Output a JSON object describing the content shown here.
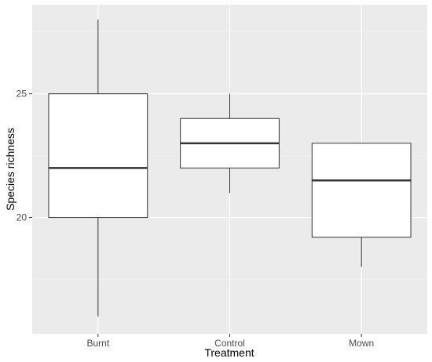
{
  "chart_data": {
    "type": "boxplot",
    "title": "",
    "xlabel": "Treatment",
    "ylabel": "Species richness",
    "categories": [
      "Burnt",
      "Control",
      "Mown"
    ],
    "boxes": [
      {
        "category": "Burnt",
        "whisker_low": 16,
        "q1": 20,
        "median": 22,
        "q3": 25,
        "whisker_high": 28
      },
      {
        "category": "Control",
        "whisker_low": 21,
        "q1": 22,
        "median": 23,
        "q3": 24,
        "whisker_high": 25
      },
      {
        "category": "Mown",
        "whisker_low": 18,
        "q1": 19.2,
        "median": 21.5,
        "q3": 23,
        "whisker_high": 23
      }
    ],
    "ylim": [
      15.3,
      28.6
    ],
    "y_ticks": [
      20,
      25
    ],
    "y_tick_labels": [
      "20",
      "25"
    ],
    "grid": true,
    "colors": {
      "panel_background": "#ebebeb",
      "grid_major": "#ffffff",
      "grid_minor": "#f5f5f5",
      "box_fill": "#ffffff",
      "box_stroke": "#333333",
      "median_stroke": "#333333"
    }
  }
}
